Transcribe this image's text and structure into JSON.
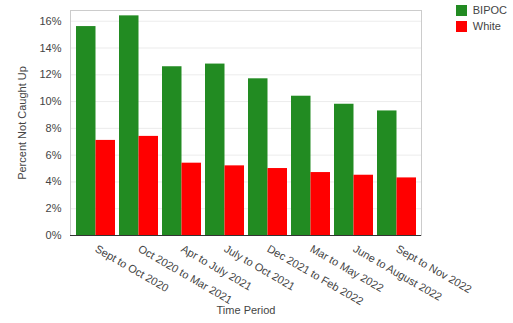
{
  "chart_data": {
    "type": "bar",
    "x_label": "Time Period",
    "y_label": "Percent Not Caught Up",
    "categories": [
      "Sept to Oct 2020",
      "Oct 2020 to Mar 2021",
      "Apr to July 2021",
      "July to Oct 2021",
      "Dec 2021 to Feb 2022",
      "Mar to May 2022",
      "June to August 2022",
      "Sept to Nov 2022"
    ],
    "series": [
      {
        "name": "BIPOC",
        "color": "#228b22",
        "values": [
          15.6,
          16.4,
          12.6,
          12.8,
          11.7,
          10.4,
          9.8,
          9.3
        ]
      },
      {
        "name": "White",
        "color": "#ff0000",
        "values": [
          7.1,
          7.4,
          5.4,
          5.2,
          5.0,
          4.7,
          4.5,
          4.3
        ]
      }
    ],
    "ylim": [
      0,
      16.8
    ],
    "yticks": [
      {
        "value": 0,
        "label": "0%"
      },
      {
        "value": 2,
        "label": "2%"
      },
      {
        "value": 4,
        "label": "4%"
      },
      {
        "value": 6,
        "label": "6%"
      },
      {
        "value": 8,
        "label": "8%"
      },
      {
        "value": 10,
        "label": "10%"
      },
      {
        "value": 12,
        "label": "12%"
      },
      {
        "value": 14,
        "label": "14%"
      },
      {
        "value": 16,
        "label": "16%"
      }
    ],
    "grid": true,
    "legend": "top-right"
  }
}
